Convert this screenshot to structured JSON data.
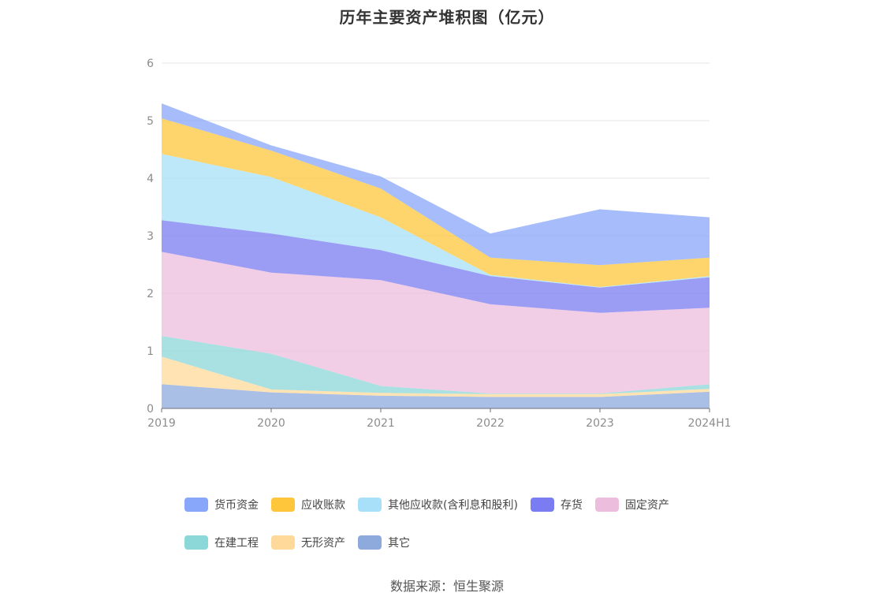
{
  "title": "历年主要资产堆积图（亿元）",
  "source": "数据来源：恒生聚源",
  "chart_data": {
    "type": "area",
    "stacked": true,
    "x": [
      "2019",
      "2020",
      "2021",
      "2022",
      "2023",
      "2024H1"
    ],
    "ylim": [
      0,
      6
    ],
    "yticks": [
      0,
      1,
      2,
      3,
      4,
      5,
      6
    ],
    "grid": true,
    "legend_position": "bottom",
    "series": [
      {
        "name": "其它",
        "color": "#8eaadc",
        "values": [
          0.42,
          0.28,
          0.22,
          0.2,
          0.2,
          0.29
        ]
      },
      {
        "name": "无形资产",
        "color": "#ffd99a",
        "values": [
          0.48,
          0.05,
          0.05,
          0.05,
          0.05,
          0.05
        ]
      },
      {
        "name": "在建工程",
        "color": "#8cd7d8",
        "values": [
          0.36,
          0.62,
          0.12,
          0.01,
          0.01,
          0.08
        ]
      },
      {
        "name": "固定资产",
        "color": "#ecbddc",
        "values": [
          1.46,
          1.41,
          1.84,
          1.55,
          1.4,
          1.33
        ]
      },
      {
        "name": "存货",
        "color": "#7a7cf2",
        "values": [
          0.55,
          0.68,
          0.52,
          0.49,
          0.44,
          0.53
        ]
      },
      {
        "name": "其他应收款(含利息和股利)",
        "color": "#a7e0f8",
        "values": [
          1.15,
          0.98,
          0.57,
          0.02,
          0.01,
          0.02
        ]
      },
      {
        "name": "应收账款",
        "color": "#fec73b",
        "values": [
          0.62,
          0.46,
          0.5,
          0.3,
          0.38,
          0.32
        ]
      },
      {
        "name": "货币资金",
        "color": "#88a6fa",
        "values": [
          0.26,
          0.09,
          0.21,
          0.42,
          0.97,
          0.7
        ]
      }
    ]
  },
  "legend_order": [
    {
      "name": "货币资金",
      "color": "#88a6fa"
    },
    {
      "name": "应收账款",
      "color": "#fec73b"
    },
    {
      "name": "其他应收款(含利息和股利)",
      "color": "#a7e0f8"
    },
    {
      "name": "存货",
      "color": "#7a7cf2"
    },
    {
      "name": "固定资产",
      "color": "#ecbddc"
    },
    {
      "name": "在建工程",
      "color": "#8cd7d8"
    },
    {
      "name": "无形资产",
      "color": "#ffd99a"
    },
    {
      "name": "其它",
      "color": "#8eaadc"
    }
  ]
}
